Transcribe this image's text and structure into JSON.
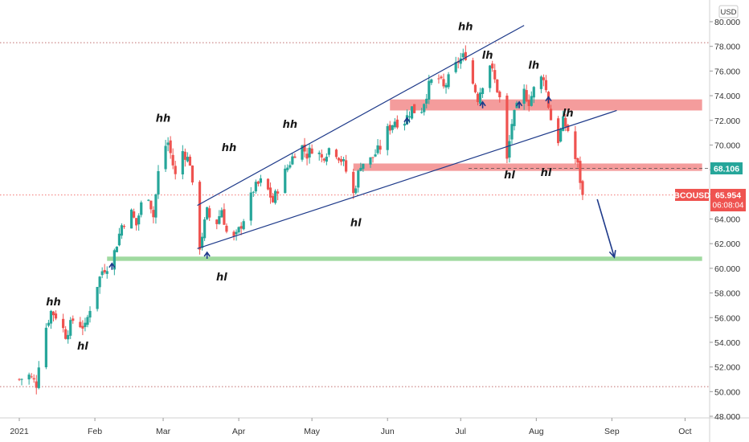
{
  "chart_data": {
    "type": "candlestick",
    "symbol": "BCOUSD",
    "currency": "USD",
    "last_price": "65.954",
    "countdown": "06:08:04",
    "level_label": "68.106",
    "level_price": 68.106,
    "ylim": [
      48,
      80
    ],
    "y_ticks": [
      "48.000",
      "50.000",
      "52.000",
      "54.000",
      "56.000",
      "58.000",
      "60.000",
      "62.000",
      "64.000",
      "66.000",
      "68.000",
      "70.000",
      "72.000",
      "74.000",
      "76.000",
      "78.000",
      "80.000"
    ],
    "x_ticks": [
      {
        "label": "2021",
        "day": 0
      },
      {
        "label": "Feb",
        "day": 31
      },
      {
        "label": "Mar",
        "day": 59
      },
      {
        "label": "Apr",
        "day": 90
      },
      {
        "label": "May",
        "day": 120
      },
      {
        "label": "Jun",
        "day": 151
      },
      {
        "label": "Jul",
        "day": 181
      },
      {
        "label": "Aug",
        "day": 212
      },
      {
        "label": "Sep",
        "day": 243
      },
      {
        "label": "Oct",
        "day": 273
      }
    ],
    "colors": {
      "up": "#26a69a",
      "down": "#ef5350",
      "line": "#1e3a8a",
      "zone_red": "#f28b8b",
      "zone_green": "#8fd48f"
    },
    "pivots": [
      {
        "day": 0,
        "p": 51.0
      },
      {
        "day": 4,
        "p": 51.3
      },
      {
        "day": 7,
        "p": 50.6
      },
      {
        "day": 9,
        "p": 54.0
      },
      {
        "day": 13,
        "p": 56.5
      },
      {
        "day": 16,
        "p": 56.0
      },
      {
        "day": 19,
        "p": 54.6
      },
      {
        "day": 22,
        "p": 55.8
      },
      {
        "day": 27,
        "p": 55.2
      },
      {
        "day": 30,
        "p": 57.6
      },
      {
        "day": 34,
        "p": 59.8
      },
      {
        "day": 38,
        "p": 60.6
      },
      {
        "day": 42,
        "p": 63.5
      },
      {
        "day": 46,
        "p": 64.5
      },
      {
        "day": 48,
        "p": 63.5
      },
      {
        "day": 52,
        "p": 66.8
      },
      {
        "day": 55,
        "p": 64.2
      },
      {
        "day": 58,
        "p": 69.5
      },
      {
        "day": 61,
        "p": 70.2
      },
      {
        "day": 64,
        "p": 67.5
      },
      {
        "day": 66,
        "p": 69.8
      },
      {
        "day": 70,
        "p": 68.6
      },
      {
        "day": 72,
        "p": 64.5
      },
      {
        "day": 74,
        "p": 61.8
      },
      {
        "day": 77,
        "p": 64.6
      },
      {
        "day": 80,
        "p": 63.2
      },
      {
        "day": 83,
        "p": 64.8
      },
      {
        "day": 86,
        "p": 62.0
      },
      {
        "day": 89,
        "p": 62.6
      },
      {
        "day": 93,
        "p": 64.5
      },
      {
        "day": 96,
        "p": 66.4
      },
      {
        "day": 100,
        "p": 67.2
      },
      {
        "day": 104,
        "p": 65.4
      },
      {
        "day": 107,
        "p": 67.0
      },
      {
        "day": 112,
        "p": 69.0
      },
      {
        "day": 115,
        "p": 70.2
      },
      {
        "day": 118,
        "p": 69.2
      },
      {
        "day": 121,
        "p": 70.0
      },
      {
        "day": 124,
        "p": 68.9
      },
      {
        "day": 128,
        "p": 70.0
      },
      {
        "day": 133,
        "p": 68.5
      },
      {
        "day": 137,
        "p": 66.0
      },
      {
        "day": 140,
        "p": 68.5
      },
      {
        "day": 144,
        "p": 68.8
      },
      {
        "day": 148,
        "p": 69.8
      },
      {
        "day": 151,
        "p": 71.2
      },
      {
        "day": 154,
        "p": 72.0
      },
      {
        "day": 157,
        "p": 71.6
      },
      {
        "day": 161,
        "p": 73.0
      },
      {
        "day": 164,
        "p": 72.3
      },
      {
        "day": 168,
        "p": 74.8
      },
      {
        "day": 171,
        "p": 75.8
      },
      {
        "day": 174,
        "p": 74.6
      },
      {
        "day": 177,
        "p": 75.7
      },
      {
        "day": 180,
        "p": 76.8
      },
      {
        "day": 183,
        "p": 77.3
      },
      {
        "day": 186,
        "p": 75.0
      },
      {
        "day": 188,
        "p": 73.8
      },
      {
        "day": 191,
        "p": 75.6
      },
      {
        "day": 193,
        "p": 76.6
      },
      {
        "day": 196,
        "p": 74.5
      },
      {
        "day": 198,
        "p": 73.0
      },
      {
        "day": 200,
        "p": 68.7
      },
      {
        "day": 202,
        "p": 71.8
      },
      {
        "day": 205,
        "p": 73.6
      },
      {
        "day": 207,
        "p": 74.3
      },
      {
        "day": 209,
        "p": 73.5
      },
      {
        "day": 212,
        "p": 75.0
      },
      {
        "day": 215,
        "p": 75.6
      },
      {
        "day": 217,
        "p": 73.2
      },
      {
        "day": 219,
        "p": 71.0
      },
      {
        "day": 221,
        "p": 70.4
      },
      {
        "day": 223,
        "p": 71.9
      },
      {
        "day": 225,
        "p": 71.2
      },
      {
        "day": 227,
        "p": 69.4
      },
      {
        "day": 229,
        "p": 68.3
      },
      {
        "day": 231,
        "p": 65.95
      }
    ],
    "lines": [
      {
        "from": {
          "day": 73,
          "p": 61.6
        },
        "to": {
          "day": 245,
          "p": 72.8
        }
      },
      {
        "from": {
          "day": 73,
          "p": 65.1
        },
        "to": {
          "day": 207,
          "p": 79.7
        }
      }
    ],
    "arrow": {
      "from": {
        "day": 237,
        "p": 65.6
      },
      "to": {
        "day": 244,
        "p": 60.9
      }
    },
    "zones": [
      {
        "from_day": 137,
        "to_day": 280,
        "p_low": 67.9,
        "p_high": 68.5,
        "color": "zone_red"
      },
      {
        "from_day": 152,
        "to_day": 280,
        "p_low": 72.8,
        "p_high": 73.7,
        "color": "zone_red"
      },
      {
        "from_day": 36,
        "to_day": 280,
        "p_low": 60.6,
        "p_high": 60.95,
        "color": "zone_green"
      }
    ],
    "dotted_levels": [
      78.3,
      65.95,
      50.4
    ],
    "markers": [
      {
        "day": 38,
        "p": 60.2
      },
      {
        "day": 77,
        "p": 61.1
      },
      {
        "day": 159,
        "p": 72.0
      },
      {
        "day": 190,
        "p": 73.3
      },
      {
        "day": 205,
        "p": 73.3
      },
      {
        "day": 217,
        "p": 73.7
      }
    ],
    "annotations": [
      {
        "text": "hh",
        "day": 14,
        "p": 57.0
      },
      {
        "text": "hl",
        "day": 26,
        "p": 53.4
      },
      {
        "text": "hh",
        "day": 59,
        "p": 71.9
      },
      {
        "text": "hl",
        "day": 83,
        "p": 59.0
      },
      {
        "text": "hh",
        "day": 86,
        "p": 69.5
      },
      {
        "text": "hh",
        "day": 111,
        "p": 71.4
      },
      {
        "text": "hl",
        "day": 138,
        "p": 63.4
      },
      {
        "text": "hh",
        "day": 183,
        "p": 79.3
      },
      {
        "text": "lh",
        "day": 192,
        "p": 77.0
      },
      {
        "text": "lh",
        "day": 211,
        "p": 76.2
      },
      {
        "text": "hl",
        "day": 201,
        "p": 67.3
      },
      {
        "text": "hl",
        "day": 216,
        "p": 67.5
      },
      {
        "text": "lh",
        "day": 225,
        "p": 72.3
      }
    ]
  }
}
